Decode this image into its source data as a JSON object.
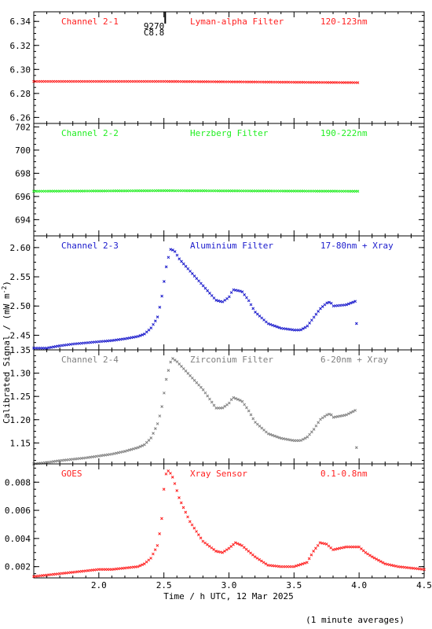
{
  "ylabel_text": "Calibrated Signal / (mW m",
  "ylabel_sup": "-2",
  "ylabel_close": ")",
  "xlabel": "Time / h UTC, 12 Mar 2025",
  "footnote": "(1 minute averages)",
  "flare_marker": {
    "class_label": "C8.8",
    "id_label": "9270",
    "x": 2.51
  },
  "colors": {
    "red": "#ff2020",
    "green": "#22ee22",
    "blue": "#1a1acc",
    "gray": "#808080"
  },
  "chart_data": [
    {
      "type": "scatter",
      "panel": "channel-2-1",
      "labels": [
        "Channel 2-1",
        "Lyman-alpha Filter",
        "120-123nm"
      ],
      "color": "#ff2020",
      "xlim": [
        1.5,
        4.5
      ],
      "ylim": [
        6.255,
        6.348
      ],
      "yticks": [
        "6.26",
        "6.28",
        "6.30",
        "6.32",
        "6.34"
      ],
      "x_range": [
        1.5,
        3.99
      ],
      "series_y": [
        [
          1.5,
          6.29
        ],
        [
          2.5,
          6.29
        ],
        [
          3.99,
          6.289
        ]
      ]
    },
    {
      "type": "scatter",
      "panel": "channel-2-2",
      "labels": [
        "Channel 2-2",
        "Herzberg Filter",
        "190-222nm"
      ],
      "color": "#22ee22",
      "xlim": [
        1.5,
        4.5
      ],
      "ylim": [
        692.6,
        702.3
      ],
      "yticks": [
        "694",
        "696",
        "698",
        "700",
        "702"
      ],
      "x_range": [
        1.5,
        3.99
      ],
      "series_y": [
        [
          1.5,
          696.45
        ],
        [
          2.5,
          696.5
        ],
        [
          3.99,
          696.45
        ]
      ]
    },
    {
      "type": "scatter",
      "panel": "channel-2-3",
      "labels": [
        "Channel 2-3",
        "Aluminium Filter",
        "17-80nm + Xray"
      ],
      "color": "#1a1acc",
      "xlim": [
        1.5,
        4.5
      ],
      "ylim": [
        2.425,
        2.62
      ],
      "yticks": [
        "2.45",
        "2.50",
        "2.55",
        "2.60"
      ],
      "x_range": [
        1.5,
        3.97
      ],
      "series_y": [
        [
          1.5,
          2.428
        ],
        [
          1.6,
          2.428
        ],
        [
          1.7,
          2.432
        ],
        [
          1.8,
          2.435
        ],
        [
          1.9,
          2.437
        ],
        [
          2.0,
          2.439
        ],
        [
          2.1,
          2.441
        ],
        [
          2.2,
          2.444
        ],
        [
          2.3,
          2.448
        ],
        [
          2.35,
          2.452
        ],
        [
          2.4,
          2.462
        ],
        [
          2.45,
          2.48
        ],
        [
          2.48,
          2.51
        ],
        [
          2.52,
          2.57
        ],
        [
          2.55,
          2.597
        ],
        [
          2.58,
          2.595
        ],
        [
          2.62,
          2.58
        ],
        [
          2.7,
          2.56
        ],
        [
          2.8,
          2.535
        ],
        [
          2.9,
          2.51
        ],
        [
          2.95,
          2.507
        ],
        [
          3.0,
          2.515
        ],
        [
          3.03,
          2.528
        ],
        [
          3.1,
          2.525
        ],
        [
          3.15,
          2.51
        ],
        [
          3.2,
          2.49
        ],
        [
          3.3,
          2.47
        ],
        [
          3.4,
          2.462
        ],
        [
          3.5,
          2.459
        ],
        [
          3.55,
          2.459
        ],
        [
          3.6,
          2.465
        ],
        [
          3.65,
          2.48
        ],
        [
          3.7,
          2.495
        ],
        [
          3.75,
          2.505
        ],
        [
          3.78,
          2.507
        ],
        [
          3.8,
          2.5
        ],
        [
          3.9,
          2.502
        ],
        [
          3.97,
          2.508
        ]
      ],
      "outliers": [
        [
          3.98,
          2.47
        ]
      ]
    },
    {
      "type": "scatter",
      "panel": "channel-2-4",
      "labels": [
        "Channel 2-4",
        "Zirconium Filter",
        "6-20nm + Xray"
      ],
      "color": "#808080",
      "xlim": [
        1.5,
        4.5
      ],
      "ylim": [
        1.105,
        1.35
      ],
      "yticks": [
        "1.15",
        "1.20",
        "1.25",
        "1.30",
        "1.35"
      ],
      "x_range": [
        1.5,
        3.97
      ],
      "series_y": [
        [
          1.5,
          1.105
        ],
        [
          1.6,
          1.108
        ],
        [
          1.7,
          1.112
        ],
        [
          1.8,
          1.115
        ],
        [
          1.9,
          1.118
        ],
        [
          2.0,
          1.122
        ],
        [
          2.1,
          1.126
        ],
        [
          2.2,
          1.132
        ],
        [
          2.3,
          1.14
        ],
        [
          2.35,
          1.146
        ],
        [
          2.4,
          1.16
        ],
        [
          2.45,
          1.19
        ],
        [
          2.48,
          1.22
        ],
        [
          2.52,
          1.29
        ],
        [
          2.56,
          1.333
        ],
        [
          2.6,
          1.325
        ],
        [
          2.7,
          1.295
        ],
        [
          2.8,
          1.265
        ],
        [
          2.9,
          1.225
        ],
        [
          2.95,
          1.225
        ],
        [
          3.0,
          1.235
        ],
        [
          3.03,
          1.248
        ],
        [
          3.1,
          1.24
        ],
        [
          3.15,
          1.22
        ],
        [
          3.2,
          1.195
        ],
        [
          3.3,
          1.17
        ],
        [
          3.4,
          1.16
        ],
        [
          3.5,
          1.155
        ],
        [
          3.55,
          1.155
        ],
        [
          3.6,
          1.162
        ],
        [
          3.65,
          1.178
        ],
        [
          3.7,
          1.2
        ],
        [
          3.75,
          1.21
        ],
        [
          3.78,
          1.213
        ],
        [
          3.8,
          1.205
        ],
        [
          3.9,
          1.21
        ],
        [
          3.97,
          1.22
        ]
      ],
      "outliers": [
        [
          3.98,
          1.14
        ]
      ]
    },
    {
      "type": "scatter",
      "panel": "goes",
      "labels": [
        "GOES",
        "Xray Sensor",
        "0.1-0.8nm"
      ],
      "color": "#ff2020",
      "xlim": [
        1.5,
        4.5
      ],
      "ylim": [
        0.0012,
        0.0093
      ],
      "yticks": [
        "0.002",
        "0.004",
        "0.006",
        "0.008"
      ],
      "xticks": [
        "2.0",
        "2.5",
        "3.0",
        "3.5",
        "4.0",
        "4.5"
      ],
      "x_range": [
        1.5,
        4.5
      ],
      "series_y": [
        [
          1.5,
          0.0013
        ],
        [
          1.6,
          0.0014
        ],
        [
          1.7,
          0.0015
        ],
        [
          1.8,
          0.0016
        ],
        [
          1.9,
          0.0017
        ],
        [
          2.0,
          0.0018
        ],
        [
          2.1,
          0.0018
        ],
        [
          2.2,
          0.0019
        ],
        [
          2.3,
          0.002
        ],
        [
          2.35,
          0.0022
        ],
        [
          2.4,
          0.0026
        ],
        [
          2.45,
          0.0035
        ],
        [
          2.48,
          0.005
        ],
        [
          2.5,
          0.0075
        ],
        [
          2.52,
          0.0088
        ],
        [
          2.54,
          0.0088
        ],
        [
          2.57,
          0.0083
        ],
        [
          2.62,
          0.0068
        ],
        [
          2.7,
          0.0052
        ],
        [
          2.8,
          0.0038
        ],
        [
          2.9,
          0.0031
        ],
        [
          2.95,
          0.003
        ],
        [
          3.0,
          0.0033
        ],
        [
          3.05,
          0.0037
        ],
        [
          3.1,
          0.0035
        ],
        [
          3.2,
          0.0027
        ],
        [
          3.3,
          0.0021
        ],
        [
          3.4,
          0.002
        ],
        [
          3.5,
          0.002
        ],
        [
          3.6,
          0.0023
        ],
        [
          3.65,
          0.0031
        ],
        [
          3.7,
          0.0037
        ],
        [
          3.75,
          0.0036
        ],
        [
          3.8,
          0.0032
        ],
        [
          3.9,
          0.0034
        ],
        [
          4.0,
          0.0034
        ],
        [
          4.05,
          0.003
        ],
        [
          4.1,
          0.0027
        ],
        [
          4.2,
          0.0022
        ],
        [
          4.3,
          0.002
        ],
        [
          4.4,
          0.0019
        ],
        [
          4.5,
          0.0018
        ]
      ]
    }
  ]
}
